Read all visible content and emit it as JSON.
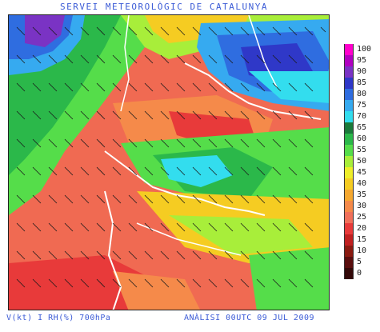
{
  "header": {
    "title": "SERVEI METEOROLÒGIC DE CATALUNYA"
  },
  "footer": {
    "left_label": "V(kt) I RH(%) 700hPa",
    "right_label": "ANÀLISI 00UTC 09 JUL 2009"
  },
  "legend": {
    "items": [
      {
        "label": "100",
        "color": "#ff00cc"
      },
      {
        "label": "95",
        "color": "#b000c0"
      },
      {
        "label": "90",
        "color": "#7a33c4"
      },
      {
        "label": "85",
        "color": "#2f38c8"
      },
      {
        "label": "80",
        "color": "#2f6de0"
      },
      {
        "label": "75",
        "color": "#36aaf0"
      },
      {
        "label": "70",
        "color": "#33ddee"
      },
      {
        "label": "65",
        "color": "#1a7a3a"
      },
      {
        "label": "60",
        "color": "#2bb84a"
      },
      {
        "label": "55",
        "color": "#55dd4a"
      },
      {
        "label": "50",
        "color": "#a8ee3a"
      },
      {
        "label": "45",
        "color": "#eeee2a"
      },
      {
        "label": "40",
        "color": "#f5cc22"
      },
      {
        "label": "35",
        "color": "#f5a830"
      },
      {
        "label": "30",
        "color": "#f58a4a"
      },
      {
        "label": "25",
        "color": "#f0705a"
      },
      {
        "label": "20",
        "color": "#e83a3a"
      },
      {
        "label": "15",
        "color": "#c02020"
      },
      {
        "label": "10",
        "color": "#8a1a10"
      },
      {
        "label": "5",
        "color": "#5a0e0e"
      },
      {
        "label": "0",
        "color": "#330808"
      }
    ]
  }
}
